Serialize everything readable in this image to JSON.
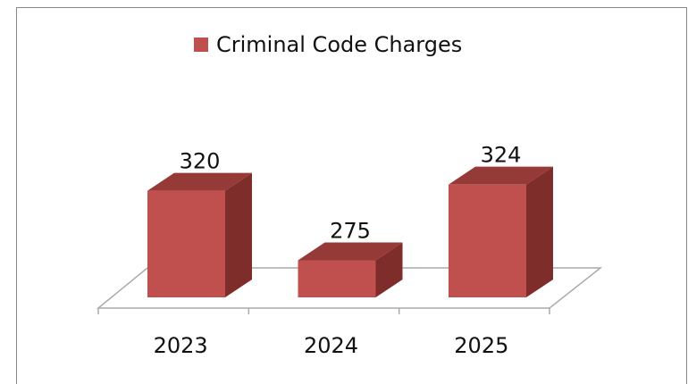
{
  "chart_data": {
    "type": "bar3d",
    "categories": [
      "2023",
      "2024",
      "2025"
    ],
    "series": [
      {
        "name": "Criminal Code Charges",
        "color": "#c0504d",
        "values": [
          320,
          275,
          324
        ]
      }
    ],
    "ylim": [
      251,
      340
    ]
  }
}
